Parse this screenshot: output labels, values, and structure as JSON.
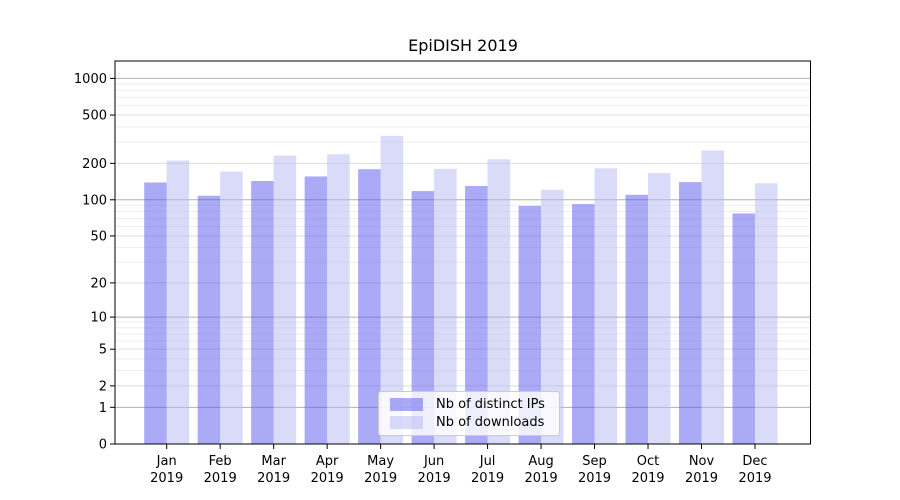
{
  "chart_data": {
    "type": "bar",
    "title": "EpiDISH 2019",
    "categories": [
      "Jan",
      "Feb",
      "Mar",
      "Apr",
      "May",
      "Jun",
      "Jul",
      "Aug",
      "Sep",
      "Oct",
      "Nov",
      "Dec"
    ],
    "category_year": "2019",
    "series": [
      {
        "name": "Nb of distinct IPs",
        "color": "85,85,238",
        "fill_alpha": 0.5,
        "values": [
          139,
          108,
          143,
          156,
          179,
          118,
          130,
          89,
          92,
          110,
          140,
          77
        ]
      },
      {
        "name": "Nb of downloads",
        "color": "181,181,243",
        "fill_alpha": 0.5,
        "values": [
          211,
          171,
          232,
          238,
          337,
          180,
          216,
          121,
          182,
          166,
          255,
          137
        ]
      }
    ],
    "xlabel": "",
    "ylabel": "",
    "yscale": "log1p",
    "ylim": [
      0,
      1390
    ],
    "y_tick_labels": [
      "0",
      "1",
      "2",
      "5",
      "10",
      "20",
      "50",
      "100",
      "200",
      "500",
      "1000"
    ],
    "y_tick_values": [
      0,
      1,
      2,
      5,
      10,
      20,
      50,
      100,
      200,
      500,
      1000
    ],
    "grid": "horizontal",
    "legend_position": "lower center inside plot"
  },
  "colors": {
    "background": "#ffffff",
    "axis_frame": "#000000",
    "grid_major": "#b0b0b0",
    "grid_labeled": "#dedede",
    "grid_minor": "#eeeeee",
    "tick_text": "#000000",
    "legend_border": "#cccccc"
  }
}
